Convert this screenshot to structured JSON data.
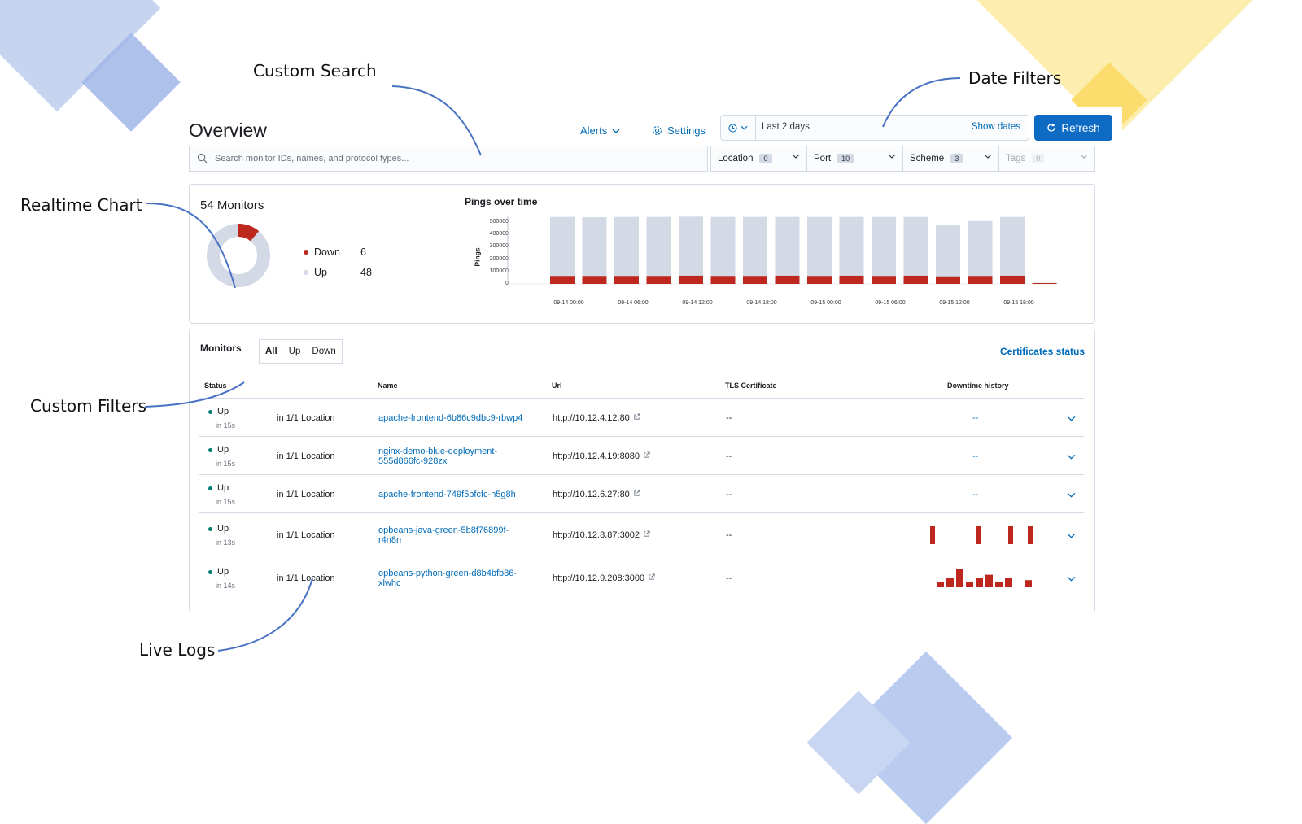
{
  "callouts": {
    "custom_search": "Custom Search",
    "date_filters": "Date Filters",
    "realtime_chart": "Realtime Chart",
    "custom_filters": "Custom Filters",
    "live_logs": "Live Logs"
  },
  "header": {
    "title": "Overview",
    "alerts_label": "Alerts",
    "settings_label": "Settings",
    "date_range": "Last 2 days",
    "show_dates": "Show dates",
    "refresh_label": "Refresh"
  },
  "search": {
    "placeholder": "Search monitor IDs, names, and protocol types..."
  },
  "filters": [
    {
      "label": "Location",
      "count": "0"
    },
    {
      "label": "Port",
      "count": "10"
    },
    {
      "label": "Scheme",
      "count": "3"
    },
    {
      "label": "Tags",
      "count": "0"
    }
  ],
  "snapshot": {
    "title": "54 Monitors",
    "down_label": "Down",
    "down_value": "6",
    "up_label": "Up",
    "up_value": "48",
    "down_fraction": 0.111
  },
  "chart_data": {
    "type": "bar",
    "title": "Pings over time",
    "ylabel": "Pings",
    "ylim": [
      0,
      500000
    ],
    "y_ticks": [
      "500000",
      "400000",
      "300000",
      "200000",
      "100000",
      "0"
    ],
    "x_ticks": [
      "09-14 00:00",
      "09-14 06:00",
      "09-14 12:00",
      "09-14 18:00",
      "09-15 00:00",
      "09-15 06:00",
      "09-15 12:00",
      "09-15 18:00"
    ],
    "series": [
      {
        "name": "Up",
        "values": [
          490000,
          488000,
          490000,
          490000,
          492000,
          490000,
          490000,
          490000,
          490000,
          490000,
          490000,
          490000,
          430000,
          460000,
          490000,
          8000
        ]
      },
      {
        "name": "Down",
        "values": [
          58000,
          58000,
          58000,
          58000,
          60000,
          58000,
          58000,
          60000,
          58000,
          60000,
          58000,
          60000,
          55000,
          58000,
          60000,
          6000
        ]
      }
    ],
    "colors": {
      "up": "#d3dae6",
      "down": "#bd271e"
    }
  },
  "monitors": {
    "title": "Monitors",
    "tabs": [
      "All",
      "Up",
      "Down"
    ],
    "certificates_link": "Certificates status",
    "columns": [
      "Status",
      "Name",
      "Url",
      "TLS Certificate",
      "Downtime history"
    ],
    "rows": [
      {
        "status": "Up",
        "ago": "in 15s",
        "location": "in 1/1 Location",
        "name": [
          "apache-frontend-6b86c9dbc9-rbwp4"
        ],
        "url": "http://10.12.4.12:80",
        "tls": "--",
        "downtime": "--",
        "bars": []
      },
      {
        "status": "Up",
        "ago": "in 15s",
        "location": "in 1/1 Location",
        "name": [
          "nginx-demo-blue-deployment-",
          "555d866fc-928zx"
        ],
        "url": "http://10.12.4.19:8080",
        "tls": "--",
        "downtime": "--",
        "bars": []
      },
      {
        "status": "Up",
        "ago": "in 15s",
        "location": "in 1/1 Location",
        "name": [
          "apache-frontend-749f5bfcfc-h5g8h"
        ],
        "url": "http://10.12.6.27:80",
        "tls": "--",
        "downtime": "--",
        "bars": []
      },
      {
        "status": "Up",
        "ago": "in 13s",
        "location": "in 1/1 Location",
        "name": [
          "opbeans-java-green-5b8f76899f-",
          "r4n8n"
        ],
        "url": "http://10.12.8.87:3002",
        "tls": "--",
        "downtime": "",
        "bars": [
          0,
          0,
          1,
          0,
          0,
          0,
          0,
          0,
          0,
          1,
          0,
          0,
          0,
          0,
          1,
          0,
          0,
          1
        ]
      },
      {
        "status": "Up",
        "ago": "in 14s",
        "location": "in 1/1 Location",
        "name": [
          "opbeans-python-green-d8b4bfb86-",
          "xlwhc"
        ],
        "url": "http://10.12.9.208:3000",
        "tls": "--",
        "downtime": "",
        "bars": [
          0,
          0,
          0.3,
          0.5,
          1,
          0.3,
          0.5,
          0.7,
          0.3,
          0.5,
          0,
          0.4
        ]
      }
    ]
  },
  "colors": {
    "accent": "#006bb8",
    "up": "#017d73",
    "down": "#bd271e",
    "deco_blue": "#a9bfea",
    "deco_yellow": "#fde48a"
  }
}
